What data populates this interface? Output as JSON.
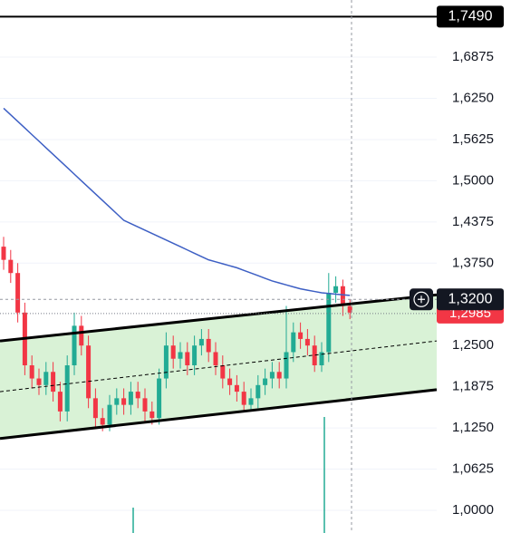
{
  "chart_data": {
    "type": "candlestick",
    "ylim": [
      0.9656,
      1.7742
    ],
    "yticks": [
      {
        "value": 1.0,
        "label": "1,0000"
      },
      {
        "value": 1.0625,
        "label": "1,0625"
      },
      {
        "value": 1.125,
        "label": "1,1250"
      },
      {
        "value": 1.1875,
        "label": "1,1875"
      },
      {
        "value": 1.25,
        "label": "1,2500"
      },
      {
        "value": 1.375,
        "label": "1,3750"
      },
      {
        "value": 1.4375,
        "label": "1,4375"
      },
      {
        "value": 1.5,
        "label": "1,5000"
      },
      {
        "value": 1.5625,
        "label": "1,5625"
      },
      {
        "value": 1.625,
        "label": "1,6250"
      },
      {
        "value": 1.6875,
        "label": "1,6875"
      }
    ],
    "grid": true,
    "up_color": "#22ab94",
    "down_color": "#f23645",
    "open": [
      1.4,
      1.38,
      1.36,
      1.3,
      1.22,
      1.2,
      1.19,
      1.21,
      1.18,
      1.15,
      1.22,
      1.28,
      1.25,
      1.17,
      1.14,
      1.13,
      1.16,
      1.17,
      1.16,
      1.18,
      1.17,
      1.15,
      1.14,
      1.2,
      1.25,
      1.23,
      1.24,
      1.22,
      1.25,
      1.26,
      1.24,
      1.22,
      1.2,
      1.19,
      1.18,
      1.16,
      1.17,
      1.19,
      1.2,
      1.21,
      1.2,
      1.24,
      1.27,
      1.26,
      1.25,
      1.22,
      1.24,
      1.33,
      1.34,
      1.31
    ],
    "high": [
      1.415,
      1.395,
      1.375,
      1.315,
      1.235,
      1.215,
      1.225,
      1.225,
      1.195,
      1.235,
      1.3,
      1.295,
      1.265,
      1.185,
      1.155,
      1.175,
      1.185,
      1.185,
      1.195,
      1.195,
      1.185,
      1.165,
      1.215,
      1.27,
      1.265,
      1.255,
      1.255,
      1.265,
      1.275,
      1.275,
      1.255,
      1.235,
      1.215,
      1.205,
      1.195,
      1.185,
      1.205,
      1.215,
      1.225,
      1.225,
      1.31,
      1.285,
      1.285,
      1.275,
      1.265,
      1.255,
      1.36,
      1.355,
      1.35,
      1.32
    ],
    "low": [
      1.365,
      1.345,
      1.285,
      1.205,
      1.185,
      1.175,
      1.175,
      1.165,
      1.135,
      1.135,
      1.205,
      1.235,
      1.155,
      1.125,
      1.12,
      1.12,
      1.145,
      1.145,
      1.145,
      1.155,
      1.135,
      1.13,
      1.13,
      1.185,
      1.215,
      1.215,
      1.205,
      1.205,
      1.235,
      1.225,
      1.205,
      1.185,
      1.175,
      1.165,
      1.15,
      1.15,
      1.155,
      1.175,
      1.185,
      1.185,
      1.185,
      1.225,
      1.245,
      1.235,
      1.21,
      1.21,
      1.225,
      1.315,
      1.295,
      1.29
    ],
    "close": [
      1.38,
      1.36,
      1.3,
      1.22,
      1.2,
      1.19,
      1.21,
      1.18,
      1.15,
      1.22,
      1.28,
      1.25,
      1.17,
      1.14,
      1.13,
      1.16,
      1.17,
      1.16,
      1.18,
      1.17,
      1.15,
      1.14,
      1.2,
      1.25,
      1.23,
      1.24,
      1.22,
      1.25,
      1.26,
      1.24,
      1.22,
      1.2,
      1.19,
      1.18,
      1.16,
      1.17,
      1.19,
      1.2,
      1.21,
      1.2,
      1.24,
      1.27,
      1.26,
      1.25,
      1.22,
      1.24,
      1.33,
      1.34,
      1.31,
      1.3
    ],
    "moving_average": {
      "color": "#3d5fc4",
      "values": [
        1.61,
        1.6,
        1.59,
        1.58,
        1.57,
        1.56,
        1.55,
        1.54,
        1.53,
        1.52,
        1.51,
        1.5,
        1.49,
        1.48,
        1.47,
        1.46,
        1.45,
        1.44,
        1.435,
        1.43,
        1.425,
        1.42,
        1.415,
        1.41,
        1.405,
        1.4,
        1.395,
        1.39,
        1.385,
        1.38,
        1.377,
        1.374,
        1.371,
        1.368,
        1.364,
        1.36,
        1.356,
        1.352,
        1.348,
        1.345,
        1.342,
        1.339,
        1.336,
        1.334,
        1.332,
        1.33,
        1.329,
        1.328,
        1.327,
        1.326
      ]
    },
    "channel": {
      "fill": "#d9f2d6",
      "upper": [
        1.257,
        1.327
      ],
      "middle": [
        1.18,
        1.257
      ],
      "lower": [
        1.109,
        1.183
      ]
    },
    "horizontal_line": {
      "value": 1.749,
      "label": "1,7490"
    },
    "crosshair": {
      "value": 1.32,
      "label": "1,3200"
    },
    "last_price": {
      "value": 1.2985,
      "label": "1,2985",
      "color": "#f23645"
    }
  }
}
